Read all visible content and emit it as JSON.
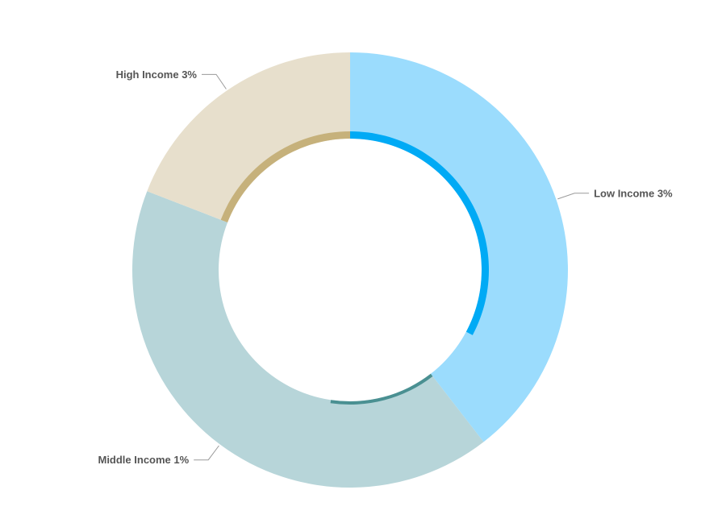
{
  "chart_data": {
    "type": "pie",
    "variant": "donut",
    "title": "",
    "slices": [
      {
        "label": "Low Income 3%",
        "value": 39.5,
        "inner_ring_fraction": 0.83,
        "color": "#9bdcfd",
        "accent": "#00aaf5"
      },
      {
        "label": "Middle Income 1%",
        "value": 41.4,
        "inner_ring_fraction": 0.31,
        "color": "#b7d5d9",
        "accent": "#4a9092"
      },
      {
        "label": "High Income 3%",
        "value": 19.1,
        "inner_ring_fraction": 1.0,
        "color": "#e7dfcc",
        "accent": "#c6b17b"
      }
    ],
    "start_angle_deg": 0,
    "direction": "clockwise",
    "legend": "none"
  }
}
